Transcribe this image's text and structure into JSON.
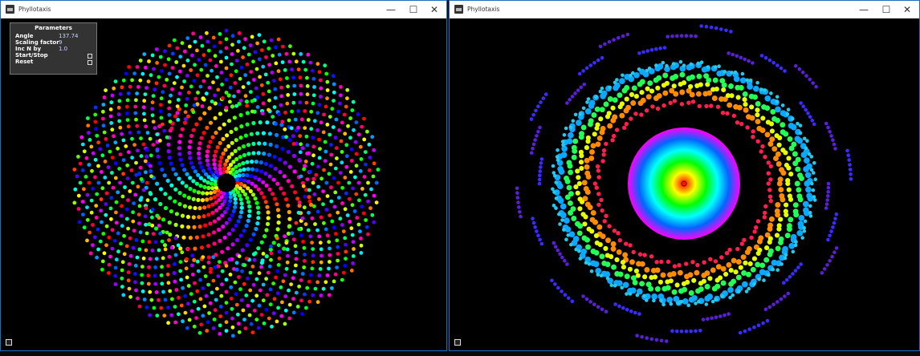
{
  "windows": [
    {
      "title": "Phyllotaxis",
      "controls": {
        "minimize": "—",
        "maximize": "☐",
        "close": "✕"
      },
      "visualization": {
        "pattern": "phyllotaxis spiral",
        "angle": 137.74,
        "scaling_factor": 9,
        "inc_n_by": 1.0,
        "inner_arm_count": 21,
        "colors": [
          "#ff0000",
          "#ff8800",
          "#ffff00",
          "#00ff00",
          "#00ffff",
          "#0066ff",
          "#8800ff",
          "#ff00ff"
        ]
      },
      "parameters": {
        "title": "Parameters",
        "rows": [
          {
            "label": "Angle",
            "value": "137.74"
          },
          {
            "label": "Scaling factor",
            "value": "9"
          },
          {
            "label": "Inc N by",
            "value": "1.0"
          },
          {
            "label": "Start/Stop",
            "value": ""
          },
          {
            "label": "Reset",
            "value": ""
          }
        ]
      }
    },
    {
      "title": "Phyllotaxis",
      "controls": {
        "minimize": "—",
        "maximize": "☐",
        "close": "✕"
      },
      "visualization": {
        "pattern": "concentric rainbow rings",
        "center_disc_colors": [
          "#ff0000",
          "#ffff00",
          "#00ff00",
          "#00ffff",
          "#0066ff",
          "#ff00ff"
        ],
        "ring_colors": [
          "#ff2255",
          "#ff8800",
          "#ffff00",
          "#00ff44",
          "#0099ff",
          "#2222dd"
        ]
      }
    }
  ]
}
